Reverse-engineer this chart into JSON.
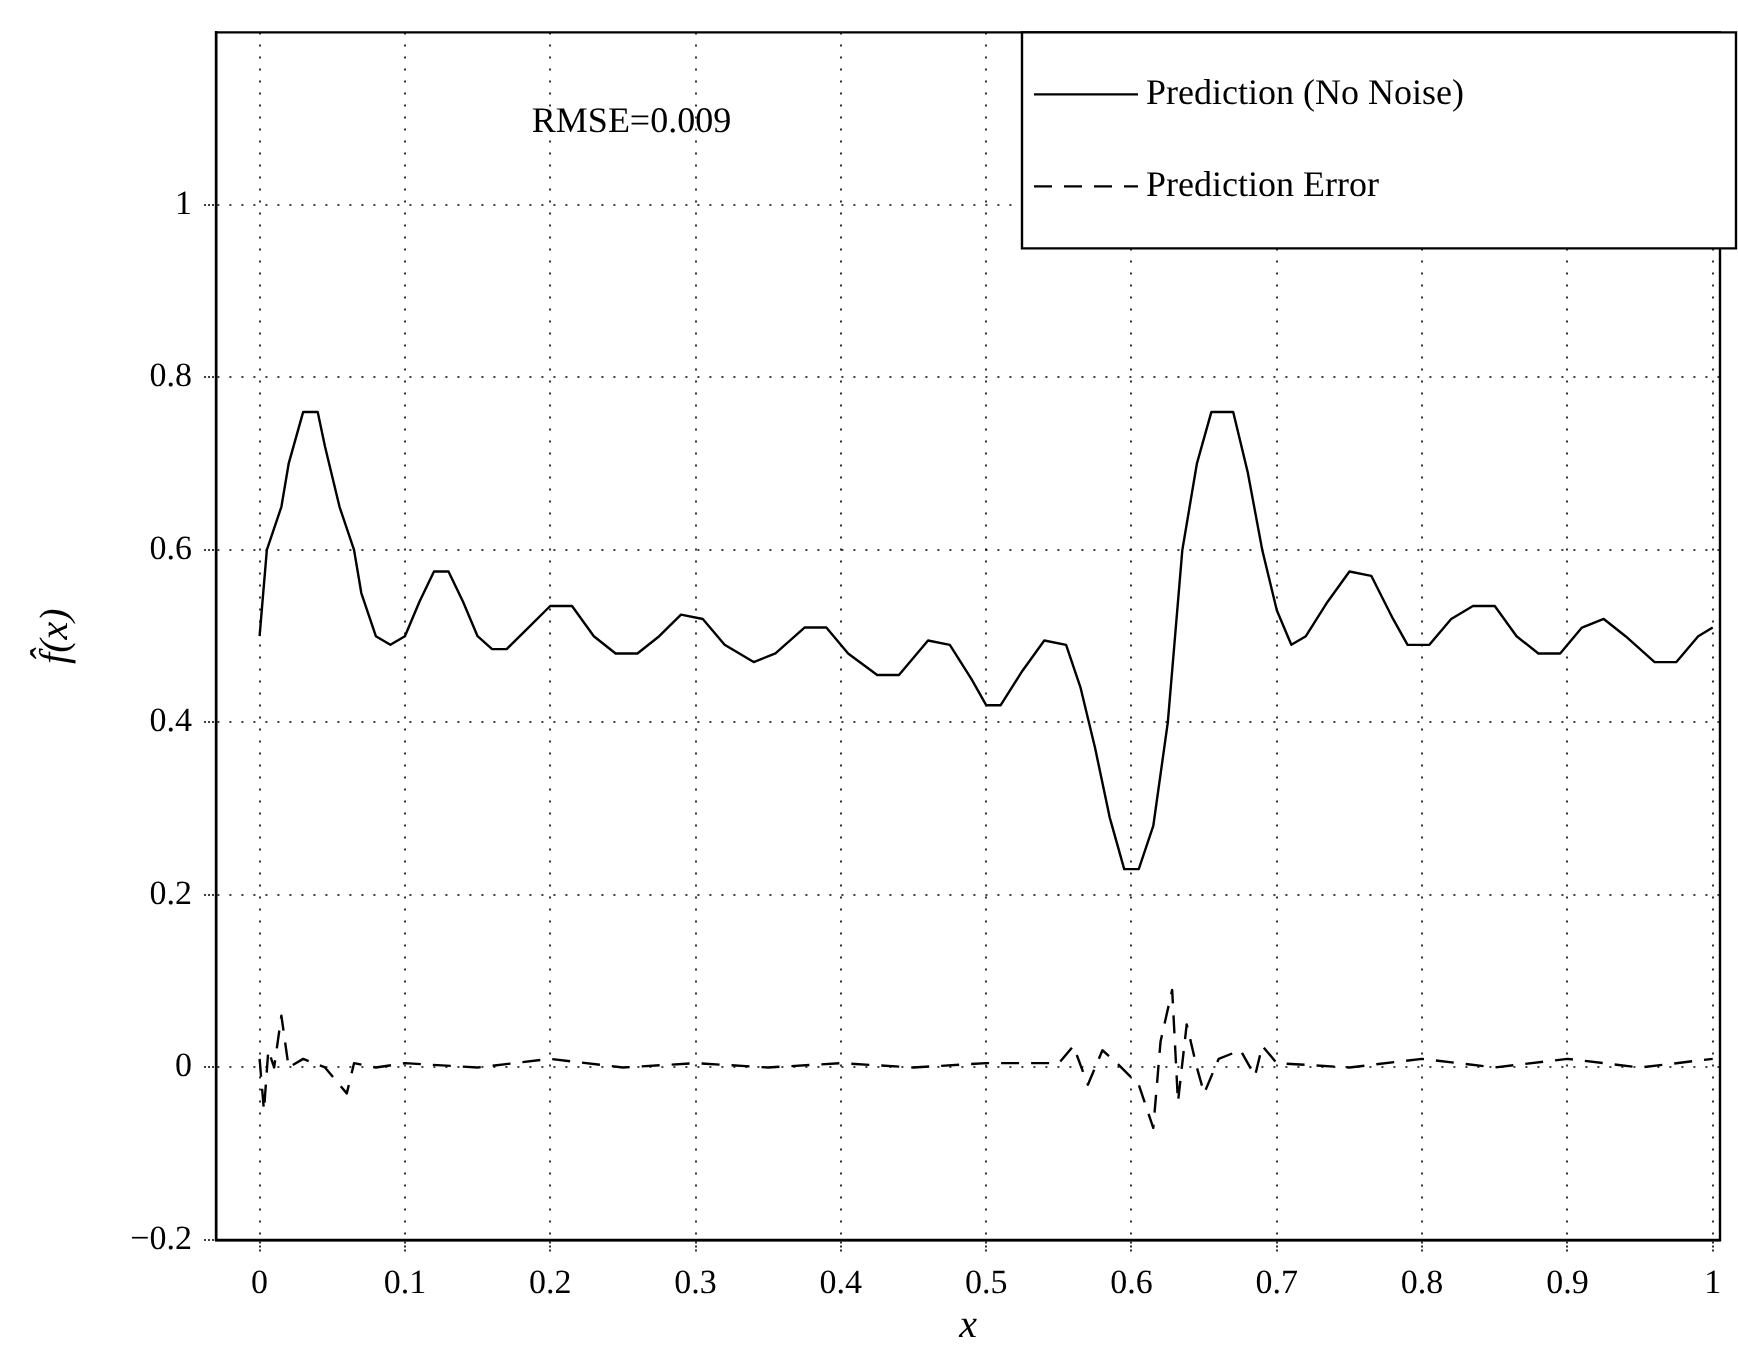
{
  "chart_data": {
    "type": "line",
    "xlabel": "x",
    "ylabel": "f̂(x)",
    "annotations": [
      "RMSE=0.009"
    ],
    "xlim": [
      -0.03,
      1.005
    ],
    "xticks": [
      0,
      0.1,
      0.2,
      0.3,
      0.4,
      0.5,
      0.6,
      0.7,
      0.8,
      0.9,
      1
    ],
    "ylim": [
      -0.2,
      1.2
    ],
    "yticks": [
      {
        "value": -0.2,
        "label": "−0.2"
      },
      0,
      0.2,
      0.4,
      0.6,
      0.8,
      1
    ],
    "grid": true,
    "legend": "top right",
    "marker": "none",
    "series": [
      {
        "name": "Prediction (No Noise)",
        "color": "#000000",
        "line_style": "solid",
        "x": [
          0,
          0.005,
          0.015,
          0.02,
          0.03,
          0.04,
          0.045,
          0.055,
          0.065,
          0.07,
          0.08,
          0.09,
          0.1,
          0.11,
          0.12,
          0.13,
          0.14,
          0.15,
          0.16,
          0.17,
          0.185,
          0.2,
          0.215,
          0.23,
          0.245,
          0.26,
          0.275,
          0.29,
          0.305,
          0.32,
          0.34,
          0.355,
          0.375,
          0.39,
          0.405,
          0.425,
          0.44,
          0.46,
          0.475,
          0.49,
          0.5,
          0.51,
          0.525,
          0.54,
          0.555,
          0.565,
          0.575,
          0.585,
          0.595,
          0.605,
          0.615,
          0.625,
          0.635,
          0.645,
          0.655,
          0.67,
          0.68,
          0.69,
          0.7,
          0.71,
          0.72,
          0.735,
          0.75,
          0.765,
          0.78,
          0.79,
          0.805,
          0.82,
          0.835,
          0.85,
          0.865,
          0.88,
          0.895,
          0.91,
          0.925,
          0.94,
          0.96,
          0.975,
          0.99,
          1
        ],
        "values": [
          0.5,
          0.6,
          0.65,
          0.7,
          0.76,
          0.76,
          0.72,
          0.65,
          0.6,
          0.55,
          0.5,
          0.49,
          0.5,
          0.54,
          0.575,
          0.575,
          0.54,
          0.5,
          0.485,
          0.485,
          0.51,
          0.535,
          0.535,
          0.5,
          0.48,
          0.48,
          0.5,
          0.525,
          0.52,
          0.49,
          0.47,
          0.48,
          0.51,
          0.51,
          0.48,
          0.455,
          0.455,
          0.495,
          0.49,
          0.45,
          0.42,
          0.42,
          0.46,
          0.495,
          0.49,
          0.44,
          0.37,
          0.29,
          0.23,
          0.23,
          0.28,
          0.4,
          0.6,
          0.7,
          0.76,
          0.76,
          0.69,
          0.6,
          0.53,
          0.49,
          0.5,
          0.54,
          0.575,
          0.57,
          0.52,
          0.49,
          0.49,
          0.52,
          0.535,
          0.535,
          0.5,
          0.48,
          0.48,
          0.51,
          0.52,
          0.5,
          0.47,
          0.47,
          0.5,
          0.51
        ]
      },
      {
        "name": "Prediction Error",
        "color": "#000000",
        "line_style": "dashed",
        "x": [
          0,
          0.003,
          0.006,
          0.01,
          0.015,
          0.02,
          0.03,
          0.045,
          0.06,
          0.065,
          0.08,
          0.1,
          0.15,
          0.2,
          0.25,
          0.3,
          0.35,
          0.4,
          0.45,
          0.5,
          0.55,
          0.56,
          0.57,
          0.58,
          0.59,
          0.605,
          0.615,
          0.62,
          0.628,
          0.632,
          0.638,
          0.645,
          0.65,
          0.66,
          0.675,
          0.685,
          0.69,
          0.7,
          0.75,
          0.8,
          0.85,
          0.9,
          0.95,
          1
        ],
        "values": [
          0.01,
          -0.05,
          0.02,
          0,
          0.06,
          0,
          0.01,
          0,
          -0.03,
          0.005,
          0,
          0.005,
          0,
          0.01,
          0,
          0.005,
          0,
          0.005,
          0,
          0.005,
          0.005,
          0.025,
          -0.02,
          0.02,
          0.005,
          -0.02,
          -0.07,
          0.03,
          0.09,
          -0.04,
          0.05,
          0,
          -0.03,
          0.01,
          0.02,
          -0.01,
          0.025,
          0.005,
          0,
          0.01,
          0,
          0.01,
          0,
          0.01
        ]
      }
    ]
  }
}
